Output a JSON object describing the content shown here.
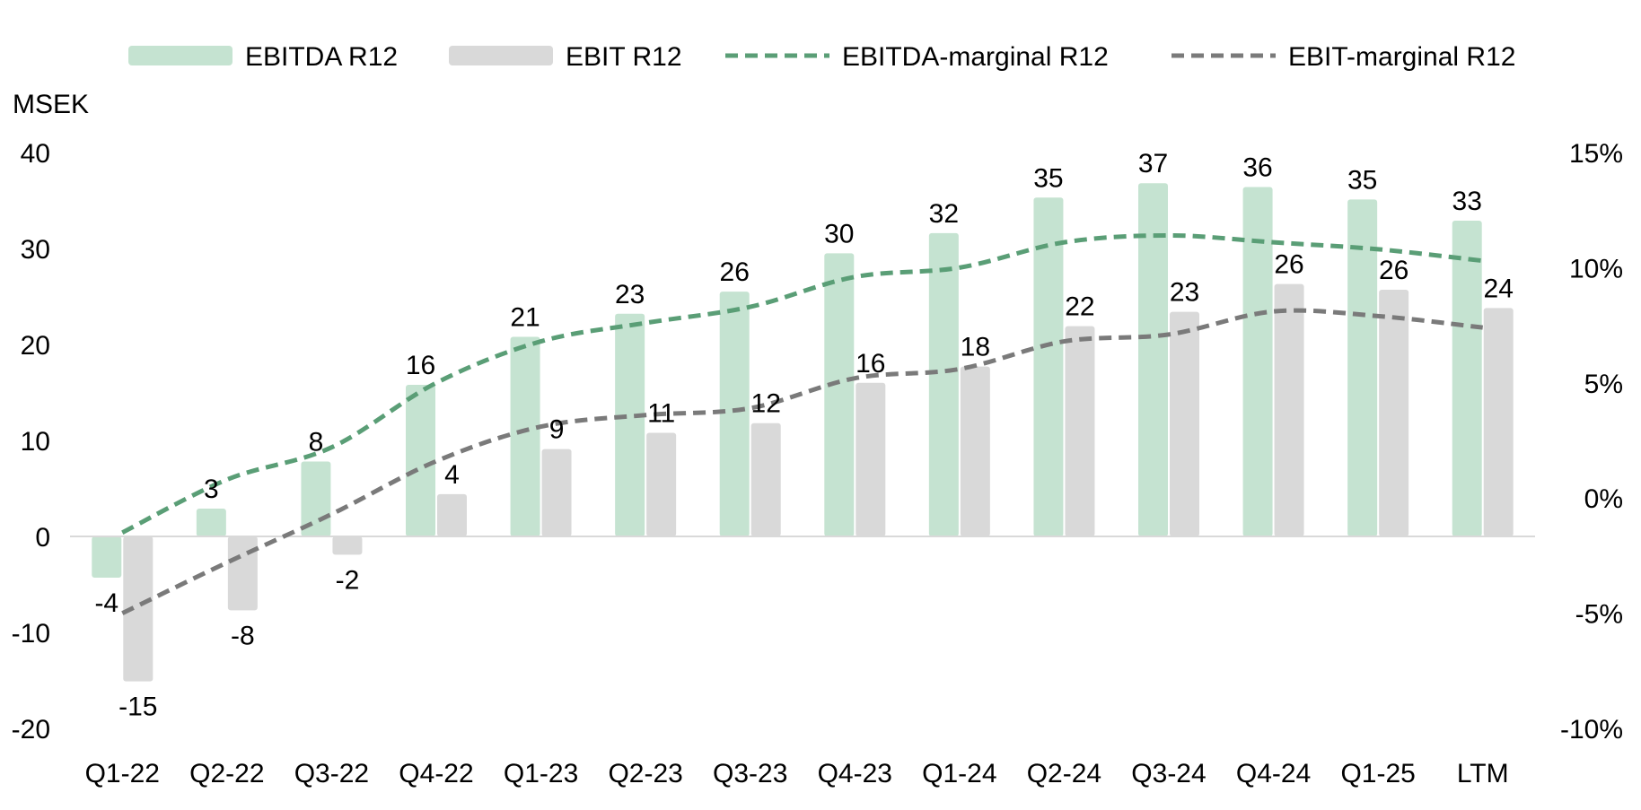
{
  "chart_data": {
    "type": "bar",
    "categories": [
      "Q1-22",
      "Q2-22",
      "Q3-22",
      "Q4-22",
      "Q1-23",
      "Q2-23",
      "Q3-23",
      "Q4-23",
      "Q1-24",
      "Q2-24",
      "Q3-24",
      "Q4-24",
      "Q1-25",
      "LTM"
    ],
    "ylabel": "MSEK",
    "ylim": [
      -20,
      40
    ],
    "yticks": [
      -20,
      -10,
      0,
      10,
      20,
      30,
      40
    ],
    "y2lim": [
      -10,
      15
    ],
    "y2ticks": [
      "-10%",
      "-5%",
      "0%",
      "5%",
      "10%",
      "15%"
    ],
    "y2tick_values": [
      -10,
      -5,
      0,
      5,
      10,
      15
    ],
    "legend_position": "top",
    "grid": false,
    "series": [
      {
        "name": "EBITDA R12",
        "kind": "bar",
        "axis": "left",
        "color": "#c5e3d1",
        "values": [
          -4.3,
          2.9,
          7.8,
          15.8,
          20.8,
          23.2,
          25.5,
          29.5,
          31.6,
          35.3,
          36.8,
          36.4,
          35.1,
          32.9
        ],
        "labels": [
          "-4",
          "3",
          "8",
          "16",
          "21",
          "23",
          "26",
          "30",
          "32",
          "35",
          "37",
          "36",
          "35",
          "33"
        ]
      },
      {
        "name": "EBIT R12",
        "kind": "bar",
        "axis": "left",
        "color": "#d9d9d9",
        "values": [
          -15.1,
          -7.7,
          -1.9,
          4.4,
          9.1,
          10.8,
          11.8,
          16.0,
          17.7,
          21.9,
          23.4,
          26.3,
          25.7,
          23.8
        ],
        "labels": [
          "-15",
          "-8",
          "-2",
          "4",
          "9",
          "11",
          "12",
          "16",
          "18",
          "22",
          "23",
          "26",
          "26",
          "24"
        ]
      },
      {
        "name": "EBITDA-marginal R12",
        "kind": "line",
        "axis": "right",
        "color": "#5a9e76",
        "dashed": true,
        "values": [
          -1.5,
          0.8,
          2.2,
          5.0,
          6.8,
          7.6,
          8.3,
          9.6,
          10.0,
          11.1,
          11.4,
          11.1,
          10.8,
          10.3
        ]
      },
      {
        "name": "EBIT-marginal R12",
        "kind": "line",
        "axis": "right",
        "color": "#7a7a7a",
        "dashed": true,
        "values": [
          -5.0,
          -2.8,
          -0.7,
          1.6,
          3.1,
          3.6,
          3.9,
          5.2,
          5.6,
          6.8,
          7.1,
          8.1,
          7.9,
          7.4
        ]
      }
    ]
  }
}
